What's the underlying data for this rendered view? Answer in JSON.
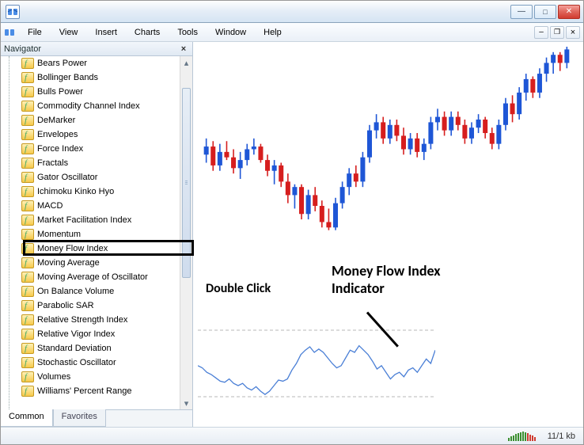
{
  "window": {
    "minimize_glyph": "—",
    "maximize_glyph": "□",
    "close_glyph": "✕"
  },
  "mdi": {
    "min": "–",
    "restore": "❐",
    "close": "×"
  },
  "menubar": [
    "File",
    "View",
    "Insert",
    "Charts",
    "Tools",
    "Window",
    "Help"
  ],
  "navigator": {
    "title": "Navigator",
    "close_glyph": "×",
    "items": [
      "Bears Power",
      "Bollinger Bands",
      "Bulls Power",
      "Commodity Channel Index",
      "DeMarker",
      "Envelopes",
      "Force Index",
      "Fractals",
      "Gator Oscillator",
      "Ichimoku Kinko Hyo",
      "MACD",
      "Market Facilitation Index",
      "Momentum",
      "Money Flow Index",
      "Moving Average",
      "Moving Average of Oscillator",
      "On Balance Volume",
      "Parabolic SAR",
      "Relative Strength Index",
      "Relative Vigor Index",
      "Standard Deviation",
      "Stochastic Oscillator",
      "Volumes",
      "Williams' Percent Range"
    ],
    "highlight_index": 13,
    "tabs": [
      "Common",
      "Favorites"
    ],
    "active_tab": 0
  },
  "annotations": {
    "double_click": "Double Click",
    "indicator_title_l1": "Money Flow Index",
    "indicator_title_l2": "Indicator"
  },
  "statusbar": {
    "transfer": "11/1 kb"
  },
  "chart": {
    "type": "candlestick",
    "up_color": "#1e56d6",
    "down_color": "#d61e1e",
    "wick_color": "#000000",
    "background": "#ffffff",
    "x_range": [
      0,
      60
    ],
    "y_range": [
      90,
      160
    ],
    "candle_width": 5,
    "candles": [
      {
        "o": 120,
        "h": 126,
        "l": 117,
        "c": 123
      },
      {
        "o": 123,
        "h": 125,
        "l": 114,
        "c": 116
      },
      {
        "o": 116,
        "h": 124,
        "l": 114,
        "c": 121
      },
      {
        "o": 121,
        "h": 125,
        "l": 118,
        "c": 119
      },
      {
        "o": 119,
        "h": 122,
        "l": 113,
        "c": 115
      },
      {
        "o": 115,
        "h": 121,
        "l": 111,
        "c": 118
      },
      {
        "o": 118,
        "h": 124,
        "l": 116,
        "c": 122
      },
      {
        "o": 122,
        "h": 126,
        "l": 120,
        "c": 123
      },
      {
        "o": 123,
        "h": 124,
        "l": 117,
        "c": 118
      },
      {
        "o": 118,
        "h": 120,
        "l": 112,
        "c": 114
      },
      {
        "o": 114,
        "h": 118,
        "l": 109,
        "c": 116
      },
      {
        "o": 116,
        "h": 117,
        "l": 108,
        "c": 110
      },
      {
        "o": 110,
        "h": 113,
        "l": 102,
        "c": 105
      },
      {
        "o": 105,
        "h": 109,
        "l": 100,
        "c": 108
      },
      {
        "o": 108,
        "h": 109,
        "l": 96,
        "c": 98
      },
      {
        "o": 98,
        "h": 107,
        "l": 96,
        "c": 105
      },
      {
        "o": 105,
        "h": 108,
        "l": 99,
        "c": 101
      },
      {
        "o": 101,
        "h": 103,
        "l": 93,
        "c": 95
      },
      {
        "o": 95,
        "h": 100,
        "l": 92,
        "c": 93
      },
      {
        "o": 93,
        "h": 104,
        "l": 92,
        "c": 102
      },
      {
        "o": 102,
        "h": 110,
        "l": 100,
        "c": 108
      },
      {
        "o": 108,
        "h": 115,
        "l": 105,
        "c": 113
      },
      {
        "o": 113,
        "h": 116,
        "l": 108,
        "c": 110
      },
      {
        "o": 110,
        "h": 121,
        "l": 108,
        "c": 119
      },
      {
        "o": 119,
        "h": 131,
        "l": 117,
        "c": 129
      },
      {
        "o": 129,
        "h": 135,
        "l": 126,
        "c": 132
      },
      {
        "o": 132,
        "h": 134,
        "l": 124,
        "c": 126
      },
      {
        "o": 126,
        "h": 133,
        "l": 124,
        "c": 131
      },
      {
        "o": 131,
        "h": 133,
        "l": 125,
        "c": 127
      },
      {
        "o": 127,
        "h": 130,
        "l": 120,
        "c": 122
      },
      {
        "o": 122,
        "h": 128,
        "l": 120,
        "c": 126
      },
      {
        "o": 126,
        "h": 128,
        "l": 119,
        "c": 121
      },
      {
        "o": 121,
        "h": 126,
        "l": 118,
        "c": 124
      },
      {
        "o": 124,
        "h": 134,
        "l": 122,
        "c": 132
      },
      {
        "o": 132,
        "h": 137,
        "l": 129,
        "c": 134
      },
      {
        "o": 134,
        "h": 136,
        "l": 127,
        "c": 129
      },
      {
        "o": 129,
        "h": 136,
        "l": 127,
        "c": 134
      },
      {
        "o": 134,
        "h": 136,
        "l": 129,
        "c": 131
      },
      {
        "o": 131,
        "h": 133,
        "l": 124,
        "c": 126
      },
      {
        "o": 126,
        "h": 132,
        "l": 124,
        "c": 130
      },
      {
        "o": 130,
        "h": 135,
        "l": 128,
        "c": 133
      },
      {
        "o": 133,
        "h": 134,
        "l": 126,
        "c": 128
      },
      {
        "o": 128,
        "h": 130,
        "l": 122,
        "c": 124
      },
      {
        "o": 124,
        "h": 133,
        "l": 122,
        "c": 131
      },
      {
        "o": 131,
        "h": 141,
        "l": 129,
        "c": 139
      },
      {
        "o": 139,
        "h": 142,
        "l": 132,
        "c": 135
      },
      {
        "o": 135,
        "h": 145,
        "l": 133,
        "c": 143
      },
      {
        "o": 143,
        "h": 150,
        "l": 140,
        "c": 148
      },
      {
        "o": 148,
        "h": 149,
        "l": 141,
        "c": 143
      },
      {
        "o": 143,
        "h": 152,
        "l": 141,
        "c": 150
      },
      {
        "o": 150,
        "h": 156,
        "l": 147,
        "c": 154
      },
      {
        "o": 154,
        "h": 158,
        "l": 150,
        "c": 157
      },
      {
        "o": 157,
        "h": 158,
        "l": 151,
        "c": 154
      },
      {
        "o": 154,
        "h": 160,
        "l": 152,
        "c": 159
      }
    ]
  },
  "indicator_chart": {
    "type": "line",
    "line_color": "#4a7fd6",
    "line_width": 1.3,
    "grid_color": "#b7b7b7",
    "grid_dash": "4,3",
    "y_range": [
      0,
      100
    ],
    "grid_levels": [
      20,
      80
    ],
    "points": [
      48,
      46,
      42,
      40,
      37,
      34,
      33,
      36,
      32,
      30,
      32,
      28,
      26,
      29,
      25,
      22,
      25,
      30,
      35,
      34,
      36,
      44,
      50,
      58,
      62,
      65,
      60,
      63,
      60,
      55,
      50,
      46,
      48,
      55,
      62,
      60,
      66,
      62,
      58,
      52,
      45,
      48,
      42,
      36,
      40,
      42,
      38,
      44,
      46,
      42,
      48,
      54,
      50,
      62
    ]
  },
  "vumeter_heights": [
    4,
    6,
    7,
    9,
    10,
    11,
    12,
    11,
    10,
    8,
    7,
    5
  ]
}
